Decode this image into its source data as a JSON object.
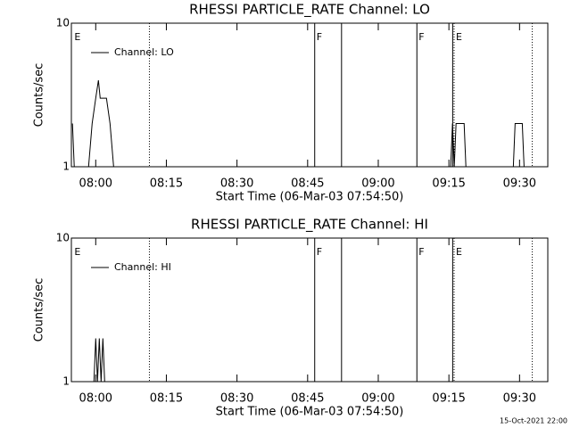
{
  "chart_data": [
    {
      "type": "line",
      "title": "RHESSI PARTICLE_RATE Channel: LO",
      "xlabel": "Start Time (06-Mar-03 07:54:50)",
      "ylabel": "Counts/sec",
      "xlim": [
        474.83,
        576
      ],
      "xticks": [
        {
          "value": 480,
          "label": "08:00"
        },
        {
          "value": 495,
          "label": "08:15"
        },
        {
          "value": 510,
          "label": "08:30"
        },
        {
          "value": 525,
          "label": "08:45"
        },
        {
          "value": 540,
          "label": "09:00"
        },
        {
          "value": 555,
          "label": "09:15"
        },
        {
          "value": 570,
          "label": "09:30"
        }
      ],
      "ylim": [
        1,
        10
      ],
      "yscale": "log",
      "yticks": [
        1,
        10
      ],
      "series": [
        {
          "name": "Channel: LO",
          "color": "#000000",
          "x": [
            475.06,
            475.44,
            null,
            478.48,
            479.24,
            480,
            480.57,
            480.95,
            482.28,
            483.04,
            483.8,
            null,
            555.38,
            555.76,
            556.14,
            556.52,
            558.23,
            558.61,
            null,
            568.68,
            569.06,
            570.58,
            570.96
          ],
          "values": [
            2,
            1,
            null,
            1,
            2,
            3,
            4,
            3,
            3,
            2,
            1,
            null,
            1,
            2,
            1,
            2,
            2,
            1,
            null,
            1,
            2,
            2,
            1
          ]
        }
      ],
      "markers": [
        {
          "x": 475.1,
          "style": "none",
          "label": "E"
        },
        {
          "x": 491.4,
          "style": "dotted"
        },
        {
          "x": 526.5,
          "style": "solid",
          "label": "F"
        },
        {
          "x": 532.2,
          "style": "solid"
        },
        {
          "x": 548.2,
          "style": "solid",
          "label": "F"
        },
        {
          "x": 555.8,
          "style": "solid"
        },
        {
          "x": 556.1,
          "style": "dotted",
          "label": "E"
        },
        {
          "x": 572.7,
          "style": "dotted"
        }
      ]
    },
    {
      "type": "line",
      "title": "RHESSI PARTICLE_RATE Channel: HI",
      "xlabel": "Start Time (06-Mar-03 07:54:50)",
      "ylabel": "Counts/sec",
      "xlim": [
        474.83,
        576
      ],
      "xticks": [
        {
          "value": 480,
          "label": "08:00"
        },
        {
          "value": 495,
          "label": "08:15"
        },
        {
          "value": 510,
          "label": "08:30"
        },
        {
          "value": 525,
          "label": "08:45"
        },
        {
          "value": 540,
          "label": "09:00"
        },
        {
          "value": 555,
          "label": "09:15"
        },
        {
          "value": 570,
          "label": "09:30"
        }
      ],
      "ylim": [
        1,
        10
      ],
      "yscale": "log",
      "yticks": [
        1,
        10
      ],
      "series": [
        {
          "name": "Channel: HI",
          "color": "#000000",
          "x": [
            479.62,
            480,
            480.38,
            480.76,
            481.14,
            481.52,
            481.9
          ],
          "values": [
            1,
            2,
            1,
            2,
            1,
            2,
            1
          ]
        }
      ],
      "markers": [
        {
          "x": 475.1,
          "style": "none",
          "label": "E"
        },
        {
          "x": 491.4,
          "style": "dotted"
        },
        {
          "x": 526.5,
          "style": "solid",
          "label": "F"
        },
        {
          "x": 532.2,
          "style": "solid"
        },
        {
          "x": 548.2,
          "style": "solid",
          "label": "F"
        },
        {
          "x": 555.8,
          "style": "solid"
        },
        {
          "x": 556.1,
          "style": "dotted",
          "label": "E"
        },
        {
          "x": 572.7,
          "style": "dotted"
        }
      ]
    }
  ],
  "footer": "15-Oct-2021 22:00"
}
